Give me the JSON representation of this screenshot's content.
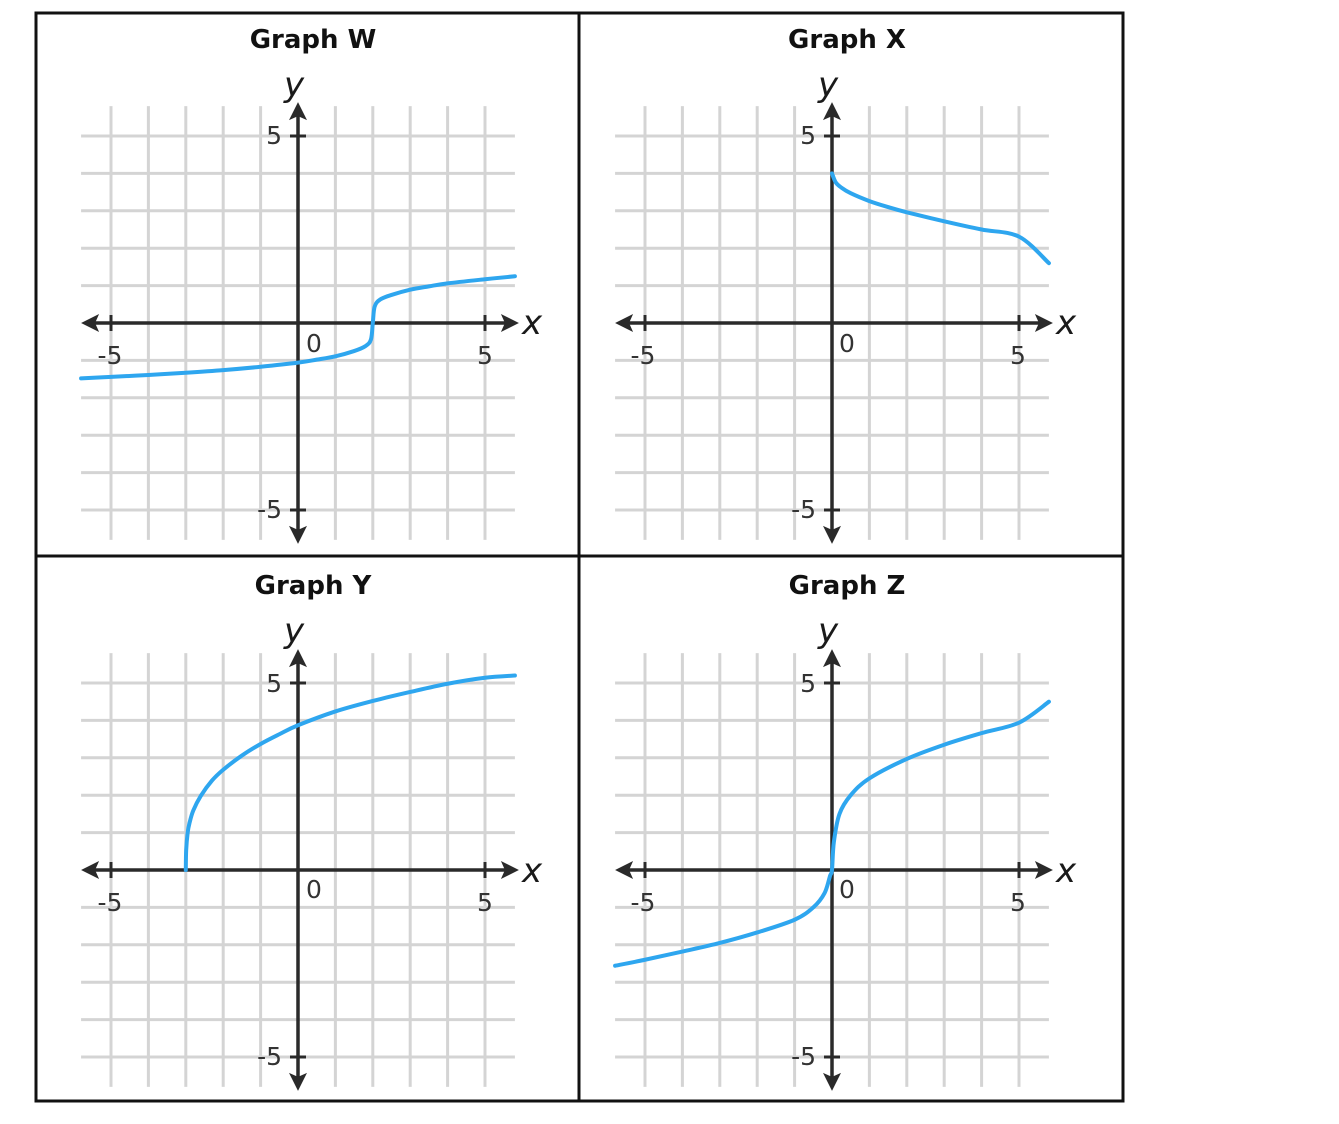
{
  "chart_data": [
    {
      "type": "line",
      "title": "Graph W",
      "xlabel": "x",
      "ylabel": "y",
      "xlim": [
        -5.8,
        5.8
      ],
      "ylim": [
        -5.8,
        5.8
      ],
      "grid": true,
      "tick_labels": {
        "x_min": "-5",
        "x_origin": "0",
        "x_max": "5",
        "y_max": "5",
        "y_min": "-5"
      },
      "series": [
        {
          "x": [
            -5.8,
            -5,
            -4,
            -3,
            -2,
            -1,
            0,
            0.5,
            1,
            1.5,
            1.8,
            1.95,
            2,
            2.05,
            2.2,
            2.5,
            3,
            3.5,
            4,
            5,
            5.8
          ],
          "y": [
            -1.48,
            -1.44,
            -1.39,
            -1.33,
            -1.26,
            -1.17,
            -1.06,
            -0.98,
            -0.89,
            -0.75,
            -0.62,
            -0.44,
            0,
            0.44,
            0.63,
            0.75,
            0.89,
            0.98,
            1.06,
            1.17,
            1.25
          ]
        }
      ]
    },
    {
      "type": "line",
      "title": "Graph X",
      "xlabel": "x",
      "ylabel": "y",
      "xlim": [
        -5.8,
        5.8
      ],
      "ylim": [
        -5.8,
        5.8
      ],
      "grid": true,
      "tick_labels": {
        "x_min": "-5",
        "x_origin": "0",
        "x_max": "5",
        "y_max": "5",
        "y_min": "-5"
      },
      "series": [
        {
          "x": [
            0,
            0.1,
            0.25,
            0.5,
            1,
            1.5,
            2,
            3,
            4,
            5,
            5.8
          ],
          "y": [
            4,
            3.76,
            3.62,
            3.47,
            3.26,
            3.1,
            2.96,
            2.72,
            2.5,
            2.31,
            1.6
          ]
        }
      ]
    },
    {
      "type": "line",
      "title": "Graph Y",
      "xlabel": "x",
      "ylabel": "y",
      "xlim": [
        -5.8,
        5.8
      ],
      "ylim": [
        -5.8,
        5.8
      ],
      "grid": true,
      "tick_labels": {
        "x_min": "-5",
        "x_origin": "0",
        "x_max": "5",
        "y_max": "5",
        "y_min": "-5"
      },
      "series": [
        {
          "x": [
            -3,
            -2.99,
            -2.95,
            -2.9,
            -2.8,
            -2.6,
            -2.3,
            -2,
            -1.5,
            -1,
            -0.5,
            0,
            1,
            2,
            3,
            4,
            5,
            5.8
          ],
          "y": [
            0,
            0.53,
            1.0,
            1.26,
            1.59,
            1.98,
            2.39,
            2.68,
            3.06,
            3.37,
            3.63,
            3.87,
            4.24,
            4.52,
            4.76,
            4.98,
            5.14,
            5.2
          ]
        }
      ]
    },
    {
      "type": "line",
      "title": "Graph Z",
      "xlabel": "x",
      "ylabel": "y",
      "xlim": [
        -5.8,
        5.8
      ],
      "ylim": [
        -5.8,
        5.8
      ],
      "grid": true,
      "tick_labels": {
        "x_min": "-5",
        "x_origin": "0",
        "x_max": "5",
        "y_max": "5",
        "y_min": "-5"
      },
      "series": [
        {
          "x": [
            -5.8,
            -5,
            -4,
            -3,
            -2,
            -1,
            -0.5,
            -0.2,
            -0.05,
            0,
            0.05,
            0.2,
            0.5,
            1,
            2,
            3,
            4,
            5,
            5.8
          ],
          "y": [
            -2.56,
            -2.4,
            -2.18,
            -1.95,
            -1.67,
            -1.33,
            -1.0,
            -0.62,
            -0.15,
            0,
            0.75,
            1.5,
            2.0,
            2.45,
            2.97,
            3.35,
            3.66,
            3.94,
            4.5
          ]
        }
      ]
    }
  ],
  "colors": {
    "curve": "#2ea6ef",
    "grid": "#d4d4d4",
    "axis": "#2a2a2a",
    "border": "#111111"
  }
}
